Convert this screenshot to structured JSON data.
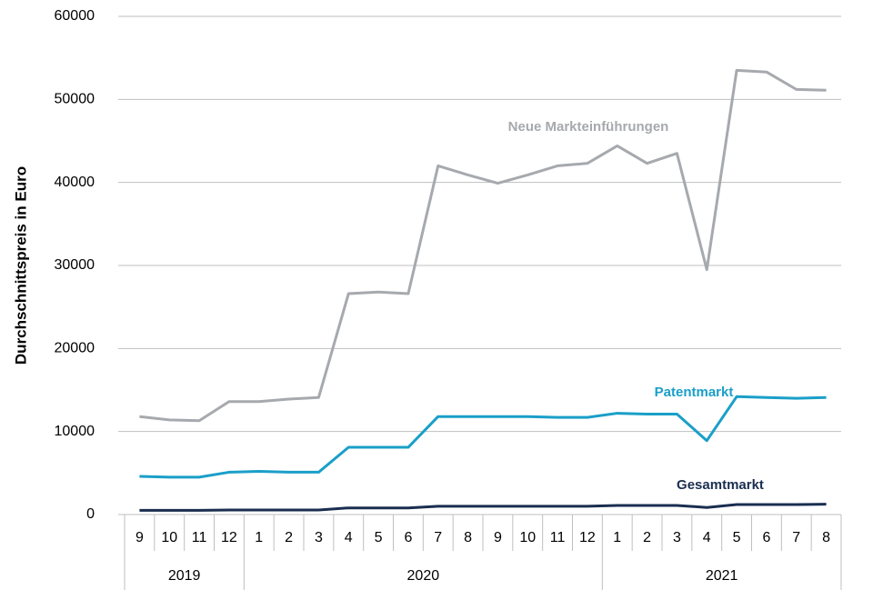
{
  "chart_data": {
    "type": "line",
    "y_label": "Durchschnittspreis in Euro",
    "category_groups": [
      {
        "label": "2019",
        "categories": [
          "9",
          "10",
          "11",
          "12"
        ]
      },
      {
        "label": "2020",
        "categories": [
          "1",
          "2",
          "3",
          "4",
          "5",
          "6",
          "7",
          "8",
          "9",
          "10",
          "11",
          "12"
        ]
      },
      {
        "label": "2021",
        "categories": [
          "1",
          "2",
          "3",
          "4",
          "5",
          "6",
          "7",
          "8"
        ]
      }
    ],
    "series": [
      {
        "name": "Neue Markteinführungen",
        "color": "#a6a9ad",
        "values": [
          11800,
          11400,
          11300,
          13600,
          13600,
          13900,
          14100,
          26600,
          26800,
          26600,
          42000,
          40900,
          39900,
          40900,
          42000,
          42300,
          44400,
          42300,
          43500,
          29500,
          53500,
          53300,
          51200,
          51100
        ]
      },
      {
        "name": "Patentmarkt",
        "color": "#1a9fc8",
        "values": [
          4600,
          4500,
          4500,
          5100,
          5200,
          5100,
          5100,
          8100,
          8100,
          8100,
          11800,
          11800,
          11800,
          11800,
          11700,
          11700,
          12200,
          12100,
          12100,
          8900,
          14200,
          14100,
          14000,
          14100
        ]
      },
      {
        "name": "Gesamtmarkt",
        "color": "#1a2e50",
        "values": [
          500,
          500,
          500,
          550,
          550,
          550,
          550,
          800,
          800,
          800,
          1000,
          1000,
          1000,
          1000,
          1000,
          1000,
          1100,
          1100,
          1100,
          850,
          1200,
          1200,
          1200,
          1250
        ]
      }
    ],
    "ylim": [
      0,
      60000
    ],
    "yticks": [
      0,
      10000,
      20000,
      30000,
      40000,
      50000,
      60000
    ],
    "grid": true
  }
}
